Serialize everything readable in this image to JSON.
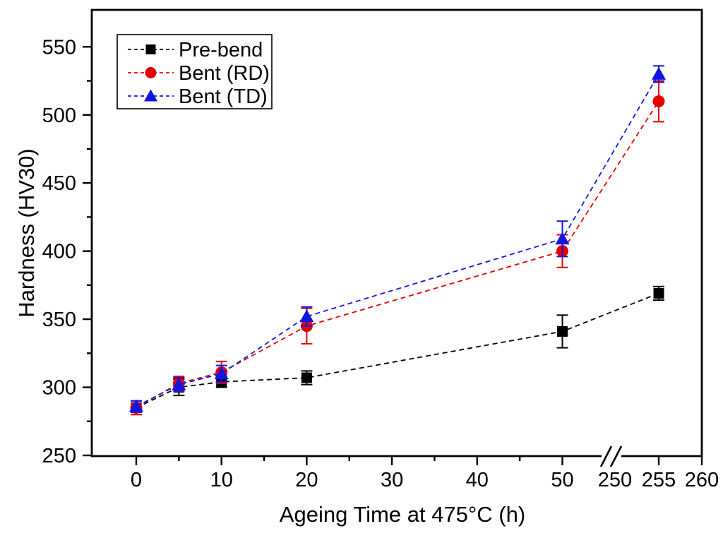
{
  "chart_data": {
    "type": "line",
    "title": "",
    "xlabel": "Ageing Time at 475°C (h)",
    "ylabel": "Hardness (HV30)",
    "x": [
      0,
      5,
      10,
      20,
      50,
      255
    ],
    "series": [
      {
        "name": "Pre-bend",
        "marker": "square",
        "color": "#000000",
        "values": [
          285,
          300,
          304,
          307,
          341,
          369
        ],
        "errors": [
          5,
          6,
          4,
          5,
          12,
          5
        ]
      },
      {
        "name": "Bent (RD)",
        "marker": "circle",
        "color": "#e60000",
        "values": [
          285,
          303,
          311,
          345,
          400,
          510
        ],
        "errors": [
          5,
          5,
          8,
          13,
          12,
          15
        ]
      },
      {
        "name": "Bent (TD)",
        "marker": "triangle",
        "color": "#1414e0",
        "values": [
          286,
          302,
          310,
          352,
          409,
          530
        ],
        "errors": [
          4,
          5,
          6,
          7,
          13,
          6
        ]
      }
    ],
    "x_axis": {
      "ticks": [
        {
          "value": 0,
          "label": "0",
          "tick": true
        },
        {
          "value": 10,
          "label": "10",
          "tick": true
        },
        {
          "value": 20,
          "label": "20",
          "tick": true
        },
        {
          "value": 30,
          "label": "30",
          "tick": true
        },
        {
          "value": 40,
          "label": "40",
          "tick": true
        },
        {
          "value": 50,
          "label": "50",
          "tick": true
        },
        {
          "value": 250,
          "label": "250",
          "tick": false
        },
        {
          "value": 255,
          "label": "255",
          "tick": true
        },
        {
          "value": 260,
          "label": "260",
          "tick": true
        }
      ],
      "minor_ticks": [
        5,
        15,
        25,
        35,
        45
      ],
      "axis_break_between": [
        50,
        250
      ]
    },
    "y_axis": {
      "range": [
        250,
        575
      ],
      "ticks": [
        {
          "value": 250,
          "label": "250"
        },
        {
          "value": 300,
          "label": "300"
        },
        {
          "value": 350,
          "label": "350"
        },
        {
          "value": 400,
          "label": "400"
        },
        {
          "value": 450,
          "label": "450"
        },
        {
          "value": 500,
          "label": "500"
        },
        {
          "value": 550,
          "label": "550"
        }
      ],
      "minor_ticks": [
        275,
        325,
        375,
        425,
        475,
        525
      ]
    },
    "legend": {
      "position": "top-left",
      "items": [
        "Pre-bend",
        "Bent (RD)",
        "Bent (TD)"
      ]
    },
    "grid": false
  }
}
